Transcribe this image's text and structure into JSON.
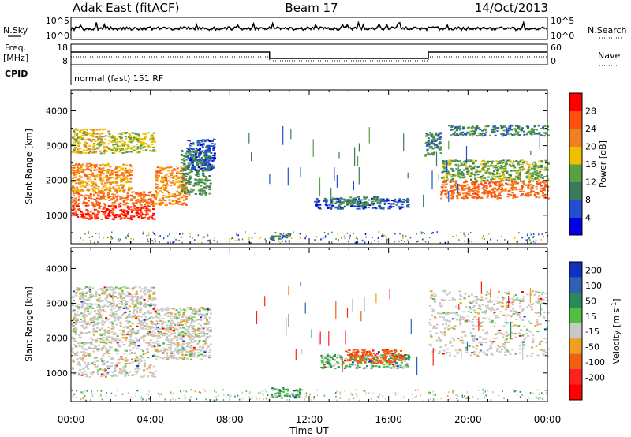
{
  "header": {
    "station": "Adak East (fitACF)",
    "beam": "Beam 17",
    "date": "14/Oct/2013"
  },
  "top_panels": {
    "nsky_label": "N.Sky",
    "nsearch_label": "N.Search",
    "freq_label_1": "Freq.",
    "freq_label_2": "[MHz]",
    "nave_label": "Nave",
    "cpid_label": "CPID",
    "cpid_text": "normal (fast) 151 RF",
    "noise_ticks_left": [
      "10^5",
      "10^0"
    ],
    "noise_ticks_right": [
      "10^5",
      "10^0"
    ],
    "freq_ticks": [
      "18",
      "8"
    ],
    "nave_ticks": [
      "60",
      "0"
    ]
  },
  "axes": {
    "ylabel": "Slant Range [km]",
    "xlabel": "Time UT",
    "yticks": [
      "1000",
      "2000",
      "3000",
      "4000"
    ],
    "xticks": [
      "00:00",
      "04:00",
      "08:00",
      "12:00",
      "16:00",
      "20:00",
      "00:00"
    ]
  },
  "colorbars": {
    "power": {
      "label": "Power [dB]",
      "ticks": [
        "4",
        "8",
        "12",
        "16",
        "20",
        "24",
        "28"
      ],
      "colors": [
        "#0000e0",
        "#2050d0",
        "#3a7a5a",
        "#5aa040",
        "#f0c000",
        "#f08020",
        "#ff5010",
        "#ff0000"
      ]
    },
    "velocity": {
      "label_main": "Velocity [m s",
      "label_exp": "-1",
      "label_end": "]",
      "ticks": [
        "200",
        "100",
        "50",
        "15",
        "-15",
        "-50",
        "-100",
        "-200"
      ],
      "colors": [
        "#1030c0",
        "#3060b0",
        "#2a8a5a",
        "#50c040",
        "#c8c8c8",
        "#f0a020",
        "#f06010",
        "#ff2020",
        "#ff0000"
      ]
    }
  },
  "chart_data": [
    {
      "type": "heatmap",
      "title": "Power",
      "xlabel": "Time UT",
      "ylabel": "Slant Range [km]",
      "xlim": [
        0,
        24
      ],
      "ylim": [
        180,
        4600
      ],
      "colorbar": "Power [dB]",
      "clim": [
        0,
        32
      ],
      "regions": [
        {
          "t": [
            0.0,
            4.2
          ],
          "r": [
            900,
            1300
          ],
          "v": 28
        },
        {
          "t": [
            0.0,
            4.2
          ],
          "r": [
            1300,
            1700
          ],
          "v": 24
        },
        {
          "t": [
            0.0,
            3.0
          ],
          "r": [
            1700,
            2100
          ],
          "v": 20
        },
        {
          "t": [
            0.0,
            3.0
          ],
          "r": [
            2100,
            2500
          ],
          "v": 22
        },
        {
          "t": [
            0.0,
            2.0
          ],
          "r": [
            2800,
            3500
          ],
          "v": 18
        },
        {
          "t": [
            2.0,
            4.2
          ],
          "r": [
            2800,
            3400
          ],
          "v": 16
        },
        {
          "t": [
            4.2,
            5.8
          ],
          "r": [
            1300,
            2400
          ],
          "v": 22
        },
        {
          "t": [
            5.5,
            7.0
          ],
          "r": [
            1600,
            2900
          ],
          "v": 12
        },
        {
          "t": [
            5.8,
            7.2
          ],
          "r": [
            2300,
            3200
          ],
          "v": 6
        },
        {
          "t": [
            12.2,
            17.0
          ],
          "r": [
            1200,
            1500
          ],
          "v": 6
        },
        {
          "t": [
            13.5,
            15.5
          ],
          "r": [
            1300,
            1550
          ],
          "v": 12
        },
        {
          "t": [
            17.8,
            18.6
          ],
          "r": [
            2700,
            3400
          ],
          "v": 10
        },
        {
          "t": [
            18.6,
            24.0
          ],
          "r": [
            1500,
            2000
          ],
          "v": 24
        },
        {
          "t": [
            18.6,
            24.0
          ],
          "r": [
            2000,
            2600
          ],
          "v": 14
        },
        {
          "t": [
            19.0,
            24.0
          ],
          "r": [
            3300,
            3600
          ],
          "v": 10
        },
        {
          "t": [
            10.0,
            11.0
          ],
          "r": [
            300,
            500
          ],
          "v": 8
        }
      ]
    },
    {
      "type": "heatmap",
      "title": "Velocity",
      "xlabel": "Time UT",
      "ylabel": "Slant Range [km]",
      "xlim": [
        0,
        24
      ],
      "ylim": [
        180,
        4600
      ],
      "colorbar": "Velocity [m s-1]",
      "clim": [
        -200,
        200
      ],
      "regions": [
        {
          "t": [
            0.0,
            4.2
          ],
          "r": [
            900,
            2400
          ],
          "v": 0
        },
        {
          "t": [
            0.0,
            4.2
          ],
          "r": [
            2400,
            3500
          ],
          "v": 0
        },
        {
          "t": [
            4.2,
            7.0
          ],
          "r": [
            1400,
            2900
          ],
          "v": 0
        },
        {
          "t": [
            12.5,
            17.0
          ],
          "r": [
            1150,
            1550
          ],
          "v": 25
        },
        {
          "t": [
            13.8,
            16.8
          ],
          "r": [
            1300,
            1700
          ],
          "v": -60
        },
        {
          "t": [
            18.0,
            24.0
          ],
          "r": [
            1500,
            3400
          ],
          "v": 0
        },
        {
          "t": [
            10.0,
            11.5
          ],
          "r": [
            300,
            600
          ],
          "v": 30
        }
      ]
    }
  ]
}
